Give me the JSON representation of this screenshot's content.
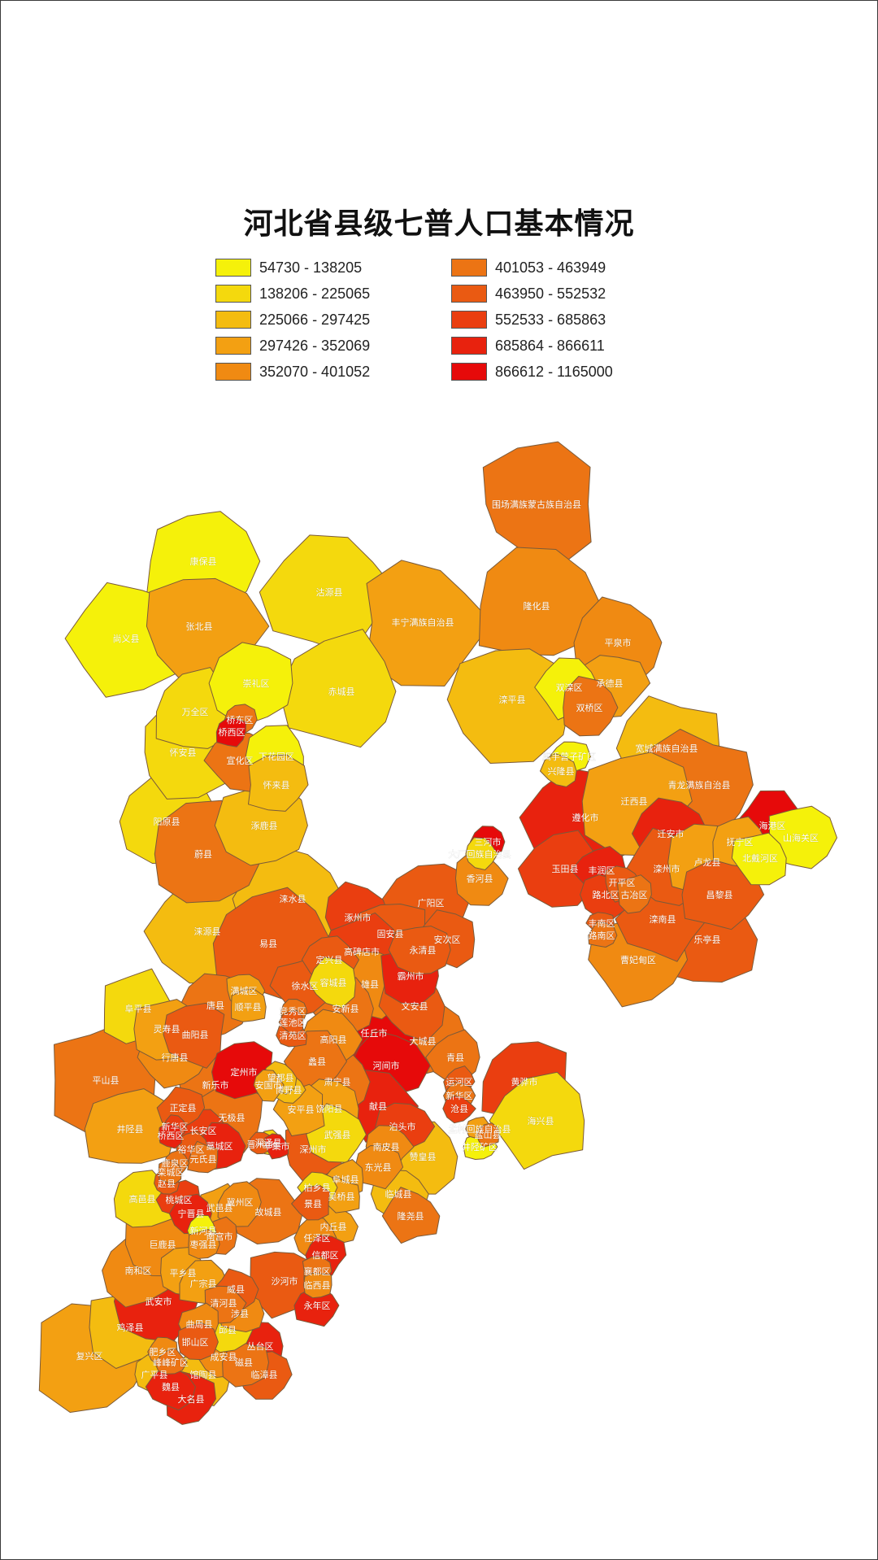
{
  "title": "河北省县级七普人口基本情况",
  "legend": [
    {
      "label": "54730 - 138205",
      "color": "#f5f10a"
    },
    {
      "label": "138206 - 225065",
      "color": "#f4d90d"
    },
    {
      "label": "225066 - 297425",
      "color": "#f4bc10"
    },
    {
      "label": "297426 - 352069",
      "color": "#f3a012"
    },
    {
      "label": "352070 - 401052",
      "color": "#f08a12"
    },
    {
      "label": "401053 - 463949",
      "color": "#ec7414"
    },
    {
      "label": "463950 - 552532",
      "color": "#ea5a12"
    },
    {
      "label": "552533 - 685863",
      "color": "#ea3e10"
    },
    {
      "label": "685864 - 866611",
      "color": "#e8220e"
    },
    {
      "label": "866612 - 1165000",
      "color": "#e60a0a"
    }
  ],
  "regions": [
    {
      "name": "围场满族蒙古族自治县",
      "cls": 5
    },
    {
      "name": "康保县",
      "cls": 0
    },
    {
      "name": "沽源县",
      "cls": 1
    },
    {
      "name": "丰宁满族自治县",
      "cls": 3
    },
    {
      "name": "隆化县",
      "cls": 4
    },
    {
      "name": "尚义县",
      "cls": 0
    },
    {
      "name": "张北县",
      "cls": 3
    },
    {
      "name": "崇礼区",
      "cls": 0
    },
    {
      "name": "赤城县",
      "cls": 1
    },
    {
      "name": "平泉市",
      "cls": 4
    },
    {
      "name": "滦平县",
      "cls": 2
    },
    {
      "name": "承德县",
      "cls": 3
    },
    {
      "name": "双滦区",
      "cls": 0
    },
    {
      "name": "双桥区",
      "cls": 5
    },
    {
      "name": "万全区",
      "cls": 1
    },
    {
      "name": "桥东区",
      "cls": 5
    },
    {
      "name": "桥西区",
      "cls": 9
    },
    {
      "name": "宣化区",
      "cls": 5
    },
    {
      "name": "怀安县",
      "cls": 1
    },
    {
      "name": "下花园区",
      "cls": 0
    },
    {
      "name": "怀来县",
      "cls": 2
    },
    {
      "name": "宽城满族自治县",
      "cls": 2
    },
    {
      "name": "鹰手营子矿区",
      "cls": 0
    },
    {
      "name": "兴隆县",
      "cls": 2
    },
    {
      "name": "阳原县",
      "cls": 1
    },
    {
      "name": "涿鹿县",
      "cls": 2
    },
    {
      "name": "青龙满族自治县",
      "cls": 5
    },
    {
      "name": "蔚县",
      "cls": 5
    },
    {
      "name": "迁西县",
      "cls": 3
    },
    {
      "name": "遵化市",
      "cls": 8
    },
    {
      "name": "迁安市",
      "cls": 8
    },
    {
      "name": "海港区",
      "cls": 9
    },
    {
      "name": "山海关区",
      "cls": 0
    },
    {
      "name": "抚宁区",
      "cls": 3
    },
    {
      "name": "北戴河区",
      "cls": 0
    },
    {
      "name": "卢龙县",
      "cls": 3
    },
    {
      "name": "三河市",
      "cls": 9
    },
    {
      "name": "大厂回族自治县",
      "cls": 1
    },
    {
      "name": "香河县",
      "cls": 4
    },
    {
      "name": "玉田县",
      "cls": 7
    },
    {
      "name": "丰润区",
      "cls": 8
    },
    {
      "name": "开平区",
      "cls": 6
    },
    {
      "name": "路北区",
      "cls": 7
    },
    {
      "name": "古冶区",
      "cls": 5
    },
    {
      "name": "滦州市",
      "cls": 6
    },
    {
      "name": "昌黎县",
      "cls": 6
    },
    {
      "name": "涞水县",
      "cls": 2
    },
    {
      "name": "丰南区",
      "cls": 6
    },
    {
      "name": "滦南县",
      "cls": 6
    },
    {
      "name": "乐亭县",
      "cls": 6
    },
    {
      "name": "涿州市",
      "cls": 7
    },
    {
      "name": "固安县",
      "cls": 6
    },
    {
      "name": "广阳区",
      "cls": 6
    },
    {
      "name": "安次区",
      "cls": 6
    },
    {
      "name": "涞源县",
      "cls": 2
    },
    {
      "name": "易县",
      "cls": 6
    },
    {
      "name": "高碑店市",
      "cls": 7
    },
    {
      "name": "永清县",
      "cls": 6
    },
    {
      "name": "定兴县",
      "cls": 6
    },
    {
      "name": "霸州市",
      "cls": 8
    },
    {
      "name": "路南区",
      "cls": 5
    },
    {
      "name": "曹妃甸区",
      "cls": 4
    },
    {
      "name": "阜平县",
      "cls": 1
    },
    {
      "name": "唐县",
      "cls": 5
    },
    {
      "name": "满城区",
      "cls": 3
    },
    {
      "name": "徐水区",
      "cls": 6
    },
    {
      "name": "容城县",
      "cls": 1
    },
    {
      "name": "雄县",
      "cls": 4
    },
    {
      "name": "文安县",
      "cls": 6
    },
    {
      "name": "顺平县",
      "cls": 3
    },
    {
      "name": "竞秀区",
      "cls": 5
    },
    {
      "name": "莲池区",
      "cls": 6
    },
    {
      "name": "安新县",
      "cls": 5
    },
    {
      "name": "任丘市",
      "cls": 9
    },
    {
      "name": "大城县",
      "cls": 5
    },
    {
      "name": "灵寿县",
      "cls": 3
    },
    {
      "name": "曲阳县",
      "cls": 6
    },
    {
      "name": "清苑区",
      "cls": 6
    },
    {
      "name": "高阳县",
      "cls": 4
    },
    {
      "name": "青县",
      "cls": 5
    },
    {
      "name": "平山县",
      "cls": 5
    },
    {
      "name": "行唐县",
      "cls": 4
    },
    {
      "name": "定州市",
      "cls": 9
    },
    {
      "name": "望都县",
      "cls": 2
    },
    {
      "name": "博野县",
      "cls": 2
    },
    {
      "name": "蠡县",
      "cls": 5
    },
    {
      "name": "河间市",
      "cls": 9
    },
    {
      "name": "新乐市",
      "cls": 5
    },
    {
      "name": "安国市",
      "cls": 3
    },
    {
      "name": "肃宁县",
      "cls": 5
    },
    {
      "name": "运河区",
      "cls": 6
    },
    {
      "name": "新华区",
      "cls": 5
    },
    {
      "name": "黄骅市",
      "cls": 7
    },
    {
      "name": "正定县",
      "cls": 6
    },
    {
      "name": "无极县",
      "cls": 5
    },
    {
      "name": "安平县",
      "cls": 3
    },
    {
      "name": "饶阳县",
      "cls": 3
    },
    {
      "name": "献县",
      "cls": 8
    },
    {
      "name": "沧县",
      "cls": 7
    },
    {
      "name": "海兴县",
      "cls": 1
    },
    {
      "name": "井陉县",
      "cls": 3
    },
    {
      "name": "新华区",
      "cls": 7
    },
    {
      "name": "桥西区",
      "cls": 8
    },
    {
      "name": "长安区",
      "cls": 7
    },
    {
      "name": "藁城区",
      "cls": 8
    },
    {
      "name": "深泽县",
      "cls": 1
    },
    {
      "name": "泊头市",
      "cls": 7
    },
    {
      "name": "孟村回族自治县",
      "cls": 3
    },
    {
      "name": "鹿泉区",
      "cls": 5
    },
    {
      "name": "裕华区",
      "cls": 6
    },
    {
      "name": "晋州市",
      "cls": 6
    },
    {
      "name": "辛集市",
      "cls": 8
    },
    {
      "name": "深州市",
      "cls": 6
    },
    {
      "name": "武强县",
      "cls": 1
    },
    {
      "name": "南皮县",
      "cls": 4
    },
    {
      "name": "盐山县",
      "cls": 5
    },
    {
      "name": "井陉矿区",
      "cls": 0
    },
    {
      "name": "栾城区",
      "cls": 5
    },
    {
      "name": "元氏县",
      "cls": 5
    },
    {
      "name": "赵县",
      "cls": 6
    },
    {
      "name": "武邑县",
      "cls": 3
    },
    {
      "name": "阜城县",
      "cls": 3
    },
    {
      "name": "东光县",
      "cls": 4
    },
    {
      "name": "赞皇县",
      "cls": 2
    },
    {
      "name": "高邑县",
      "cls": 1
    },
    {
      "name": "桃城区",
      "cls": 7
    },
    {
      "name": "柏乡县",
      "cls": 1
    },
    {
      "name": "宁晋县",
      "cls": 8
    },
    {
      "name": "冀州区",
      "cls": 4
    },
    {
      "name": "景县",
      "cls": 6
    },
    {
      "name": "吴桥县",
      "cls": 3
    },
    {
      "name": "临城县",
      "cls": 2
    },
    {
      "name": "隆尧县",
      "cls": 5
    },
    {
      "name": "新河县",
      "cls": 0
    },
    {
      "name": "枣强县",
      "cls": 4
    },
    {
      "name": "故城县",
      "cls": 5
    },
    {
      "name": "内丘县",
      "cls": 3
    },
    {
      "name": "任泽区",
      "cls": 4
    },
    {
      "name": "巨鹿县",
      "cls": 4
    },
    {
      "name": "南宫市",
      "cls": 5
    },
    {
      "name": "信都区",
      "cls": 8
    },
    {
      "name": "襄都区",
      "cls": 5
    },
    {
      "name": "南和区",
      "cls": 4
    },
    {
      "name": "平乡县",
      "cls": 3
    },
    {
      "name": "广宗县",
      "cls": 3
    },
    {
      "name": "威县",
      "cls": 6
    },
    {
      "name": "清河县",
      "cls": 5
    },
    {
      "name": "沙河市",
      "cls": 6
    },
    {
      "name": "临西县",
      "cls": 4
    },
    {
      "name": "武安市",
      "cls": 8
    },
    {
      "name": "永年区",
      "cls": 8
    },
    {
      "name": "鸡泽县",
      "cls": 2
    },
    {
      "name": "曲周县",
      "cls": 4
    },
    {
      "name": "邱县",
      "cls": 1
    },
    {
      "name": "涉县",
      "cls": 4
    },
    {
      "name": "丛台区",
      "cls": 8
    },
    {
      "name": "复兴区",
      "cls": 3
    },
    {
      "name": "邯山区",
      "cls": 6
    },
    {
      "name": "肥乡区",
      "cls": 4
    },
    {
      "name": "峰峰矿区",
      "cls": 5
    },
    {
      "name": "成安县",
      "cls": 4
    },
    {
      "name": "广平县",
      "cls": 2
    },
    {
      "name": "馆陶县",
      "cls": 2
    },
    {
      "name": "磁县",
      "cls": 5
    },
    {
      "name": "临漳县",
      "cls": 6
    },
    {
      "name": "魏县",
      "cls": 8
    },
    {
      "name": "大名县",
      "cls": 8
    }
  ]
}
